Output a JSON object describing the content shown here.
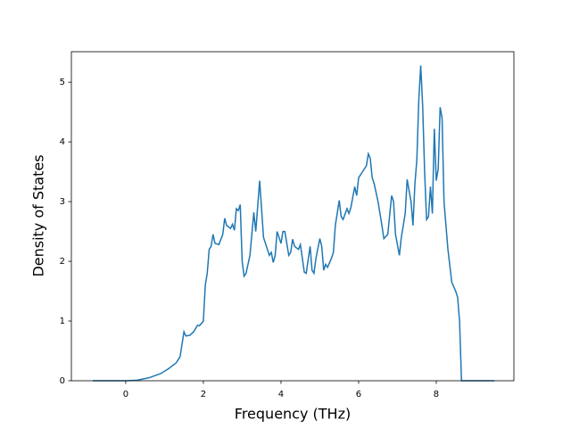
{
  "chart_data": {
    "type": "line",
    "xlabel": "Frequency (THz)",
    "ylabel": "Density of States",
    "x": [
      -0.85,
      0,
      0.3,
      0.6,
      0.9,
      1.1,
      1.3,
      1.4,
      1.5,
      1.55,
      1.65,
      1.75,
      1.85,
      1.9,
      2.0,
      2.05,
      2.1,
      2.15,
      2.2,
      2.25,
      2.3,
      2.4,
      2.5,
      2.55,
      2.6,
      2.7,
      2.75,
      2.8,
      2.85,
      2.9,
      2.95,
      3.0,
      3.05,
      3.1,
      3.2,
      3.3,
      3.35,
      3.45,
      3.55,
      3.65,
      3.7,
      3.75,
      3.8,
      3.85,
      3.9,
      3.95,
      4.0,
      4.05,
      4.1,
      4.15,
      4.2,
      4.25,
      4.3,
      4.35,
      4.45,
      4.5,
      4.55,
      4.6,
      4.65,
      4.75,
      4.8,
      4.85,
      4.9,
      5.0,
      5.05,
      5.1,
      5.15,
      5.2,
      5.3,
      5.35,
      5.4,
      5.5,
      5.55,
      5.6,
      5.7,
      5.75,
      5.8,
      5.9,
      5.95,
      6.0,
      6.1,
      6.2,
      6.25,
      6.3,
      6.35,
      6.4,
      6.5,
      6.6,
      6.65,
      6.75,
      6.85,
      6.9,
      6.95,
      7.05,
      7.1,
      7.2,
      7.25,
      7.35,
      7.4,
      7.45,
      7.5,
      7.55,
      7.6,
      7.65,
      7.7,
      7.75,
      7.8,
      7.85,
      7.9,
      7.95,
      8.0,
      8.05,
      8.1,
      8.15,
      8.2,
      8.3,
      8.4,
      8.5,
      8.55,
      8.6,
      8.65,
      9.5
    ],
    "values": [
      0,
      0,
      0.01,
      0.05,
      0.12,
      0.2,
      0.3,
      0.4,
      0.82,
      0.75,
      0.76,
      0.82,
      0.93,
      0.92,
      1.0,
      1.6,
      1.8,
      2.2,
      2.25,
      2.45,
      2.3,
      2.28,
      2.45,
      2.72,
      2.6,
      2.55,
      2.62,
      2.52,
      2.88,
      2.85,
      2.95,
      2.0,
      1.75,
      1.8,
      2.1,
      2.82,
      2.5,
      3.35,
      2.4,
      2.2,
      2.1,
      2.15,
      1.98,
      2.1,
      2.5,
      2.4,
      2.3,
      2.5,
      2.5,
      2.3,
      2.1,
      2.15,
      2.37,
      2.25,
      2.2,
      2.28,
      2.05,
      1.82,
      1.8,
      2.25,
      1.85,
      1.8,
      2.05,
      2.38,
      2.25,
      1.85,
      1.95,
      1.9,
      2.05,
      2.15,
      2.6,
      3.02,
      2.75,
      2.7,
      2.88,
      2.8,
      2.9,
      3.25,
      3.1,
      3.4,
      3.5,
      3.6,
      3.8,
      3.72,
      3.4,
      3.3,
      3.0,
      2.6,
      2.38,
      2.45,
      3.1,
      3.0,
      2.45,
      2.1,
      2.4,
      2.8,
      3.37,
      3.0,
      2.6,
      3.3,
      3.7,
      4.7,
      5.28,
      4.6,
      3.5,
      2.7,
      2.75,
      3.25,
      2.8,
      4.22,
      3.35,
      3.55,
      4.58,
      4.4,
      3.0,
      2.2,
      1.65,
      1.5,
      1.4,
      1.0,
      0,
      0
    ],
    "color": "#1f77b4",
    "xlim": [
      -1.4,
      10.0
    ],
    "xticks": [
      0,
      2,
      4,
      6,
      8
    ],
    "ylim": [
      0,
      5.51
    ],
    "yticks": [
      0,
      1,
      2,
      3,
      4,
      5
    ]
  }
}
